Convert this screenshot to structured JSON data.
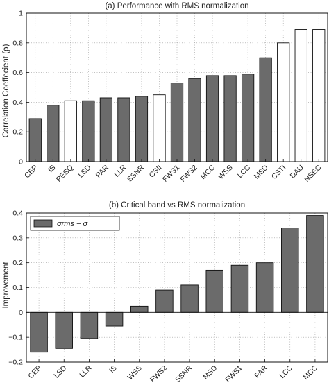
{
  "chart_data": [
    {
      "type": "bar",
      "title": "(a) Performance with RMS normalization",
      "ylabel": "Correlation Coeffecient (ρ)",
      "xlabel": "",
      "ylim": [
        0,
        1
      ],
      "yticks": [
        0,
        0.2,
        0.4,
        0.6,
        0.8,
        1
      ],
      "grid": true,
      "categories": [
        "CEP",
        "IS",
        "PESQ",
        "LSD",
        "PAR",
        "LLR",
        "SSNR",
        "CSII",
        "FWS1",
        "FWS2",
        "MCC",
        "WSS",
        "LCC",
        "MSD",
        "CSTI",
        "DAU",
        "NSEC"
      ],
      "values": [
        0.29,
        0.38,
        0.41,
        0.41,
        0.43,
        0.43,
        0.44,
        0.45,
        0.53,
        0.56,
        0.58,
        0.58,
        0.59,
        0.7,
        0.8,
        0.89,
        0.89
      ],
      "bar_fill": [
        "gray",
        "gray",
        "white",
        "gray",
        "gray",
        "gray",
        "gray",
        "white",
        "gray",
        "gray",
        "gray",
        "gray",
        "gray",
        "gray",
        "white",
        "white",
        "white"
      ],
      "colors": {
        "gray": "#6b6b6b",
        "white": "#ffffff",
        "edge": "#111111"
      }
    },
    {
      "type": "bar",
      "title": "(b) Critical band vs RMS normalization",
      "ylabel": "Improvement",
      "xlabel": "",
      "ylim": [
        -0.2,
        0.4
      ],
      "yticks": [
        -0.2,
        -0.1,
        0,
        0.1,
        0.2,
        0.3,
        0.4
      ],
      "ytick_labels": [
        "−0.2",
        "−0.1",
        "0",
        "0.1",
        "0.2",
        "0.3",
        "0.4"
      ],
      "grid": true,
      "legend": {
        "position": "top-left",
        "entries": [
          {
            "name": "σrms − σ"
          }
        ]
      },
      "categories": [
        "CEP",
        "LSD",
        "LLR",
        "IS",
        "WSS",
        "FWS2",
        "SSNR",
        "MSD",
        "FWS1",
        "PAR",
        "LCC",
        "MCC"
      ],
      "values": [
        -0.16,
        -0.145,
        -0.105,
        -0.055,
        0.025,
        0.09,
        0.11,
        0.17,
        0.19,
        0.2,
        0.34,
        0.39
      ],
      "colors": {
        "bar": "#6b6b6b",
        "edge": "#111111"
      }
    }
  ]
}
